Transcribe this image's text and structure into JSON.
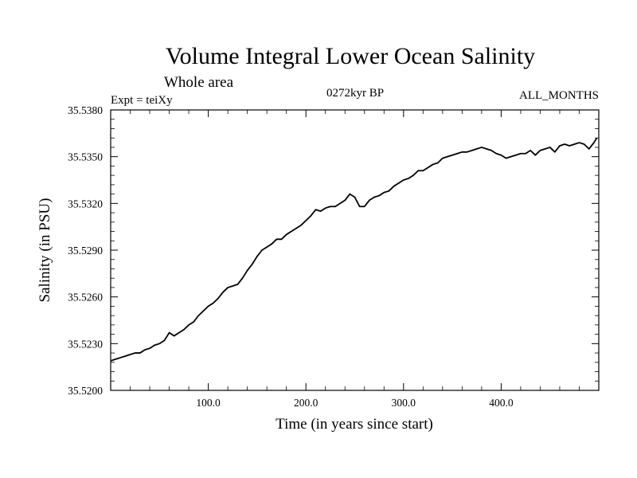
{
  "chart_data": {
    "type": "line",
    "title": "Volume Integral Lower Ocean Salinity",
    "subtitle": "Whole area",
    "left_label": "Expt = teiXy",
    "center_label": "0272kyr BP",
    "right_label": "ALL_MONTHS",
    "xlabel": "Time (in years since start)",
    "ylabel": "Salinity (in PSU)",
    "xlim": [
      0,
      500
    ],
    "ylim": [
      35.52,
      35.538
    ],
    "xticks": [
      100,
      200,
      300,
      400
    ],
    "xtick_labels": [
      "100.0",
      "200.0",
      "300.0",
      "400.0"
    ],
    "yticks": [
      35.52,
      35.523,
      35.526,
      35.529,
      35.532,
      35.535,
      35.538
    ],
    "ytick_labels": [
      "35.5200",
      "35.5230",
      "35.5260",
      "35.5290",
      "35.5320",
      "35.5350",
      "35.5380"
    ],
    "grid": false,
    "line_color": "#000000",
    "series": [
      {
        "x": [
          0,
          5,
          10,
          15,
          20,
          25,
          30,
          35,
          40,
          45,
          50,
          55,
          60,
          65,
          70,
          75,
          80,
          85,
          90,
          95,
          100,
          105,
          110,
          115,
          120,
          125,
          130,
          135,
          140,
          145,
          150,
          155,
          160,
          165,
          170,
          175,
          180,
          185,
          190,
          195,
          200,
          205,
          210,
          215,
          220,
          225,
          230,
          235,
          240,
          245,
          250,
          255,
          260,
          265,
          270,
          275,
          280,
          285,
          290,
          295,
          300,
          305,
          310,
          315,
          320,
          325,
          330,
          335,
          340,
          345,
          350,
          355,
          360,
          365,
          370,
          375,
          380,
          385,
          390,
          395,
          400,
          405,
          410,
          415,
          420,
          425,
          430,
          435,
          440,
          445,
          450,
          455,
          460,
          465,
          470,
          475,
          480,
          485,
          490,
          495,
          498
        ],
        "values": [
          35.5219,
          35.522,
          35.5221,
          35.5222,
          35.5223,
          35.5224,
          35.5224,
          35.5226,
          35.5227,
          35.5229,
          35.523,
          35.5232,
          35.5237,
          35.5235,
          35.5237,
          35.5239,
          35.5242,
          35.5244,
          35.5248,
          35.5251,
          35.5254,
          35.5256,
          35.5259,
          35.5263,
          35.5266,
          35.5267,
          35.5268,
          35.5272,
          35.5277,
          35.5281,
          35.5286,
          35.529,
          35.5292,
          35.5294,
          35.5297,
          35.5297,
          35.53,
          35.5302,
          35.5304,
          35.5306,
          35.5309,
          35.5312,
          35.5316,
          35.5315,
          35.5317,
          35.5318,
          35.5318,
          35.532,
          35.5322,
          35.5326,
          35.5324,
          35.5318,
          35.5318,
          35.5322,
          35.5324,
          35.5325,
          35.5327,
          35.5328,
          35.5331,
          35.5333,
          35.5335,
          35.5336,
          35.5338,
          35.5341,
          35.5341,
          35.5343,
          35.5345,
          35.5346,
          35.5349,
          35.535,
          35.5351,
          35.5352,
          35.5353,
          35.5353,
          35.5354,
          35.5355,
          35.5356,
          35.5355,
          35.5354,
          35.5352,
          35.5351,
          35.5349,
          35.535,
          35.5351,
          35.5352,
          35.5352,
          35.5354,
          35.5351,
          35.5354,
          35.5355,
          35.5356,
          35.5353,
          35.5357,
          35.5358,
          35.5357,
          35.5358,
          35.5359,
          35.5358,
          35.5355,
          35.5359,
          35.5362
        ]
      }
    ]
  }
}
